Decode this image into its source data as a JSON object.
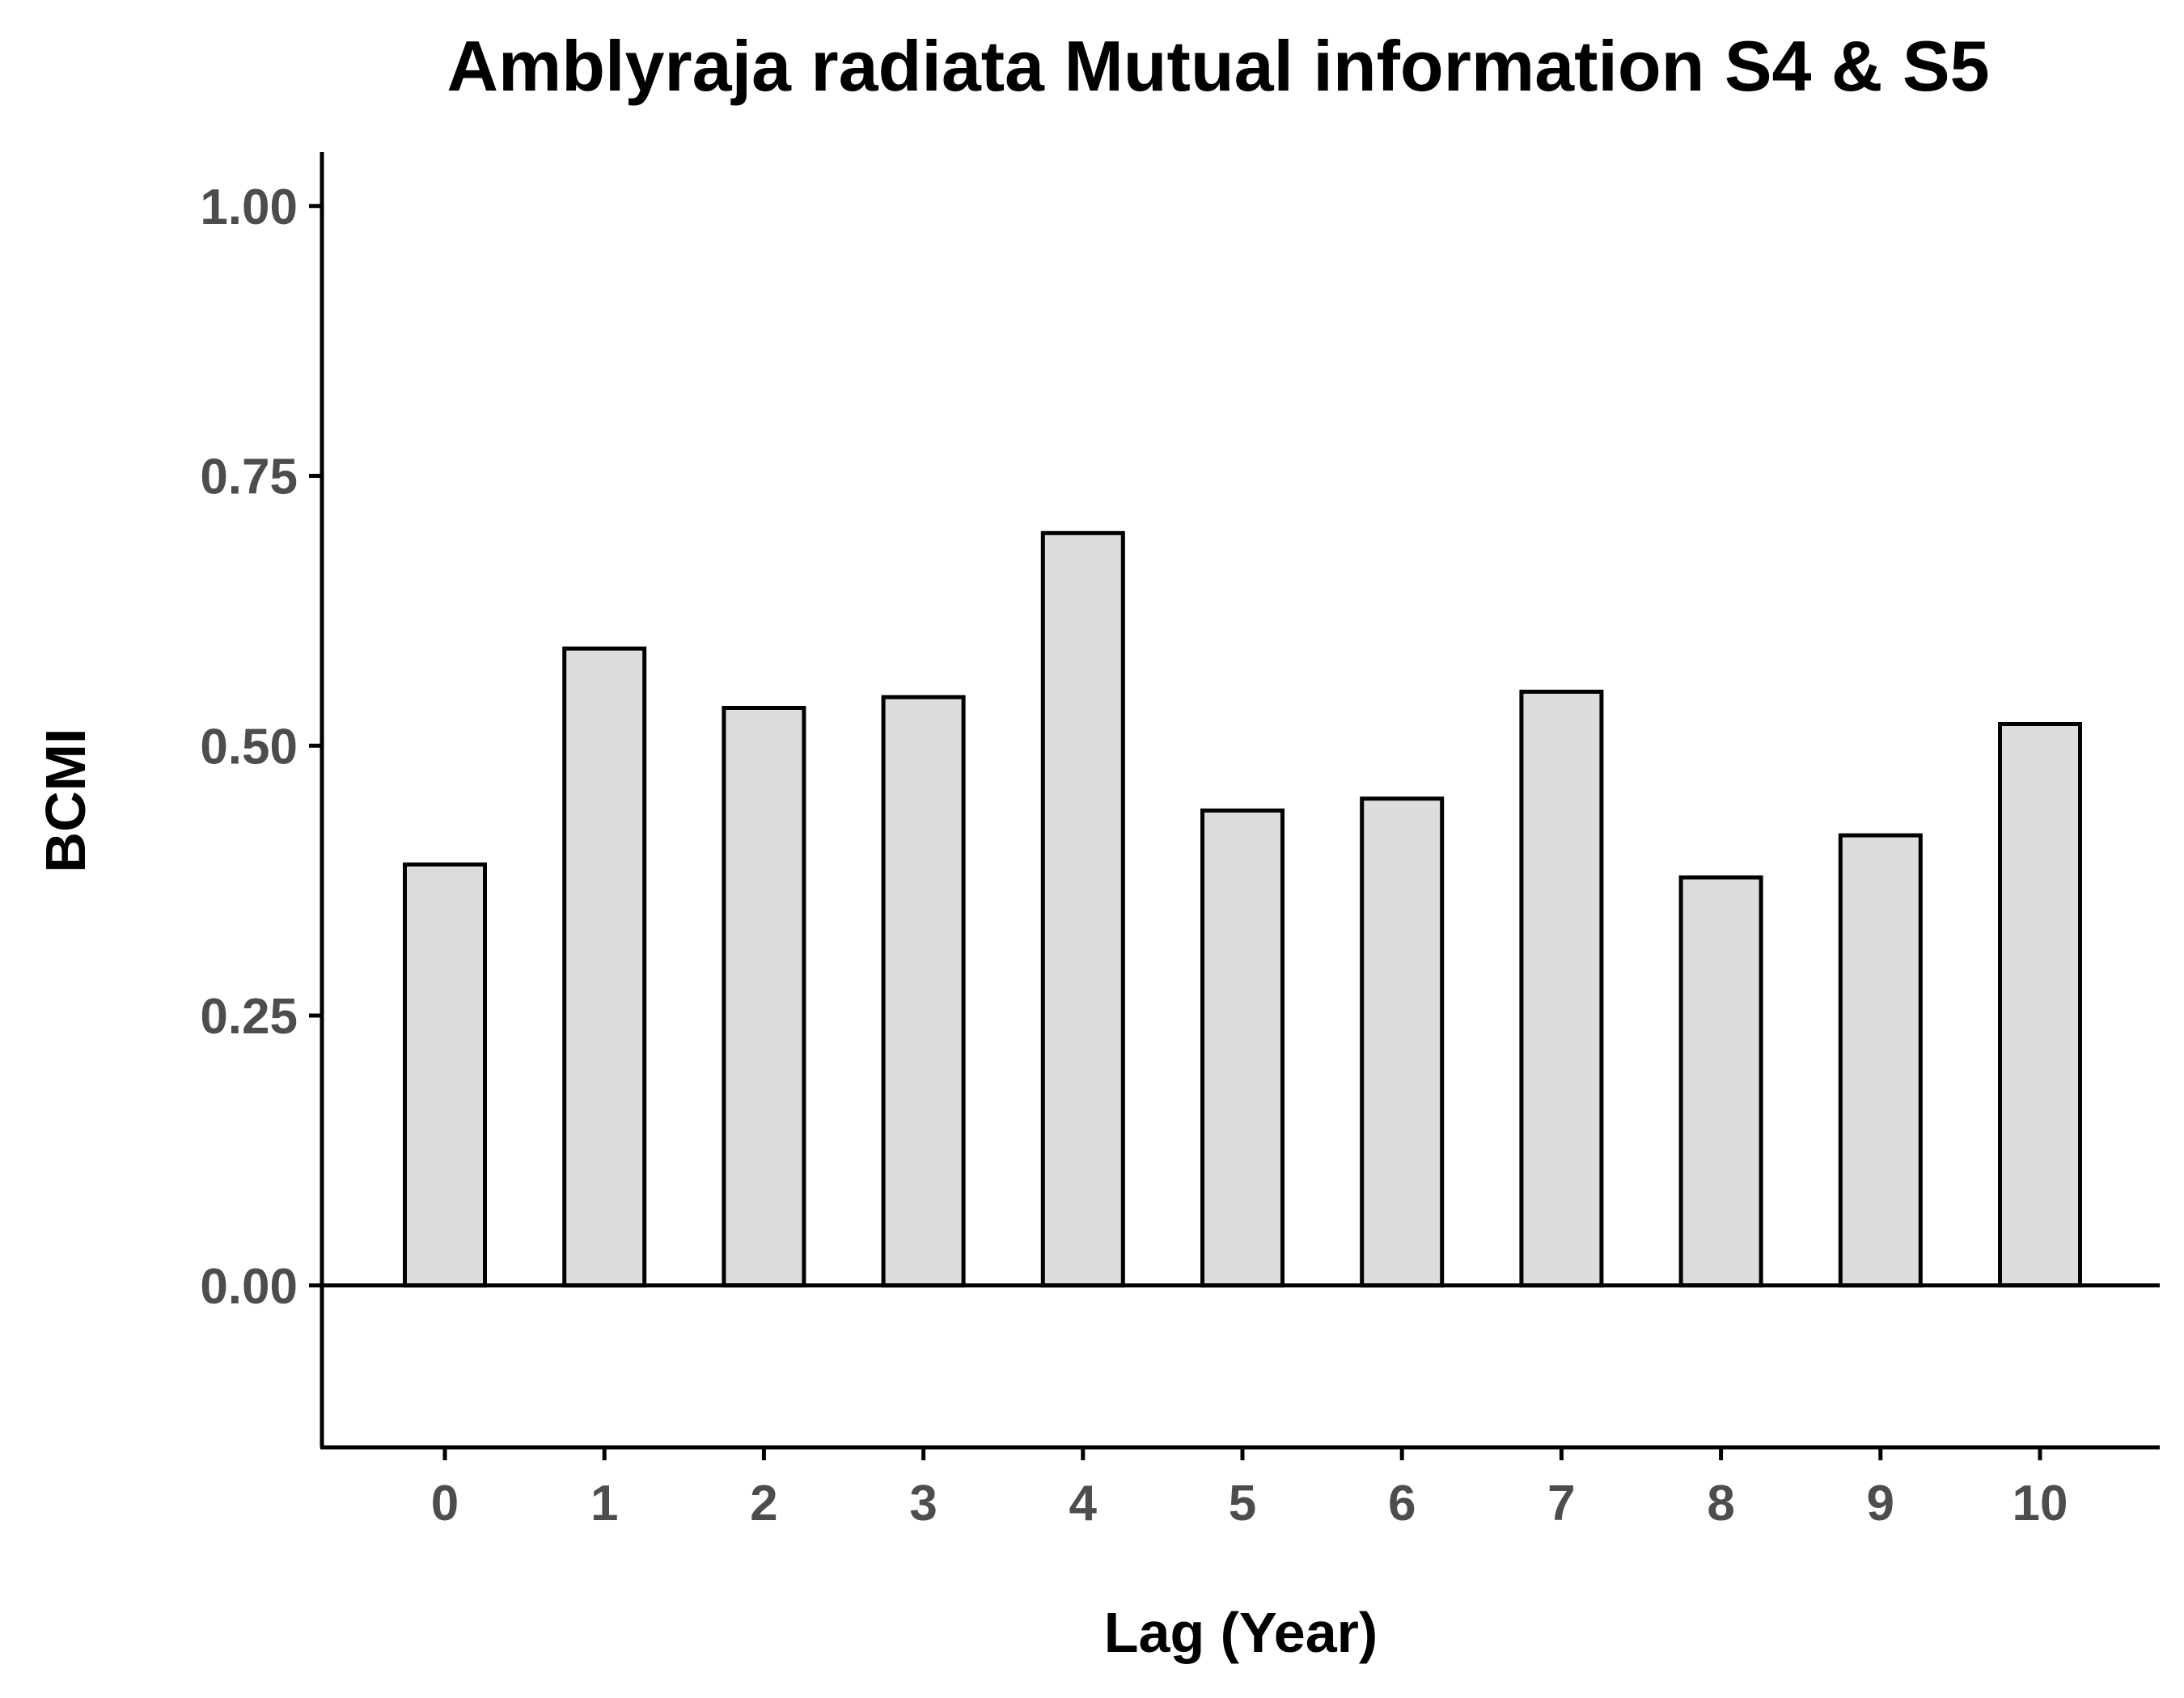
{
  "chart_data": {
    "type": "bar",
    "title": "Amblyraja radiata Mutual information S4 & S5",
    "xlabel": "Lag (Year)",
    "ylabel": "BCMI",
    "categories": [
      "0",
      "1",
      "2",
      "3",
      "4",
      "5",
      "6",
      "7",
      "8",
      "9",
      "10"
    ],
    "values": [
      0.39,
      0.59,
      0.535,
      0.545,
      0.697,
      0.44,
      0.451,
      0.55,
      0.378,
      0.417,
      0.52
    ],
    "ylim": [
      -0.15,
      1.05
    ],
    "yticks": [
      0.0,
      0.25,
      0.5,
      0.75,
      1.0
    ],
    "ytick_labels": [
      "0.00",
      "0.25",
      "0.50",
      "0.75",
      "1.00"
    ],
    "grid": false,
    "legend": "none",
    "reference_line_y": 0,
    "colors": {
      "bar_fill": "#dddddd",
      "bar_stroke": "#000000",
      "axis": "#000000",
      "tick_label": "#4d4d4d"
    }
  }
}
